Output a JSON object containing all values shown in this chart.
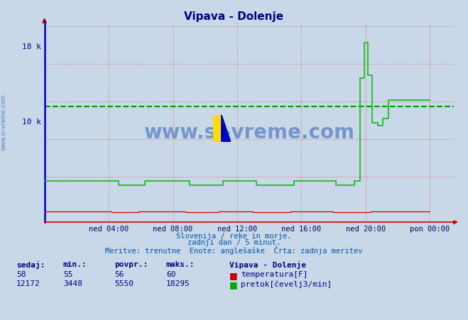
{
  "title": "Vipava - Dolenje",
  "fig_bg_color": "#c8d8e8",
  "plot_bg_color": "#c8d8e8",
  "title_color": "#000080",
  "grid_color_red": "#ee9999",
  "grid_color_blue": "#8888cc",
  "ylabel_color": "#000080",
  "xlabel_ticks": [
    "ned 04:00",
    "ned 08:00",
    "ned 12:00",
    "ned 16:00",
    "ned 20:00",
    "pon 00:00"
  ],
  "xlabel_tick_positions": [
    4,
    8,
    12,
    16,
    20,
    24
  ],
  "ytick_vals": [
    10000,
    18000
  ],
  "ytick_labels": [
    "10 k",
    "18 k"
  ],
  "ymax": 20500,
  "ymin": -800,
  "xmin": 0,
  "xmax": 25.5,
  "avg_flow_line": 11500,
  "temp_color": "#dd0000",
  "flow_color": "#00bb00",
  "temp_current": 58,
  "temp_min": 55,
  "temp_avg": 56,
  "temp_max": 60,
  "flow_current": 12172,
  "flow_min": 3448,
  "flow_avg": 5550,
  "flow_max": 18295,
  "subtitle1": "Slovenija / reke in morje.",
  "subtitle2": "zadnji dan / 5 minut.",
  "subtitle3": "Meritve: trenutne  Enote: anglešaške  Črta: zadnja meritev",
  "watermark": "www.si-vreme.com",
  "sidewatermark": "www.si-vreme.com",
  "legend_title": "Vipava - Dolenje",
  "legend1": "temperatura[F]",
  "legend2": "pretok[čevelj3/min]",
  "label1": "sedaj:",
  "label2": "min.:",
  "label3": "povpr.:",
  "label4": "maks.:"
}
